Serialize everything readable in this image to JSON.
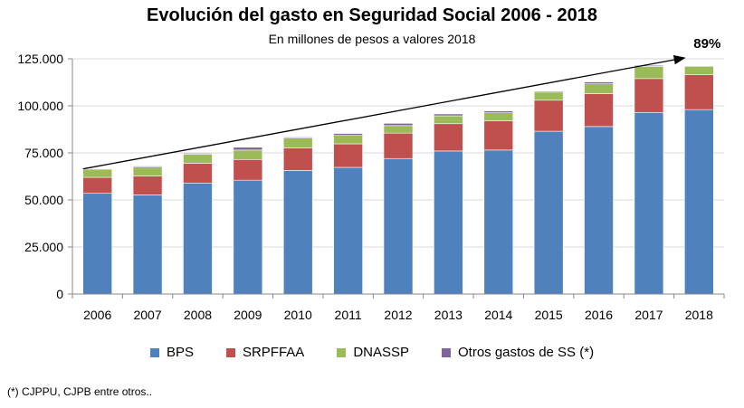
{
  "chart_data": {
    "type": "bar",
    "stacked": true,
    "title": "Evolución del gasto en Seguridad Social 2006 - 2018",
    "subtitle": "En millones de pesos a valores 2018",
    "categories": [
      "2006",
      "2007",
      "2008",
      "2009",
      "2010",
      "2011",
      "2012",
      "2013",
      "2014",
      "2015",
      "2016",
      "2017",
      "2018"
    ],
    "ylim": [
      0,
      125000
    ],
    "yticks": [
      0,
      25000,
      50000,
      75000,
      100000,
      125000
    ],
    "ytick_labels": [
      "0",
      "25.000",
      "50.000",
      "75.000",
      "100.000",
      "125.000"
    ],
    "grid": true,
    "series": [
      {
        "name": "BPS",
        "color": "#4f81bd",
        "values": [
          53500,
          52700,
          59000,
          60500,
          65700,
          67300,
          72000,
          76000,
          76500,
          86500,
          89000,
          96500,
          98000
        ]
      },
      {
        "name": "SRPFFAA",
        "color": "#c0504d",
        "values": [
          8500,
          10000,
          10500,
          11000,
          12000,
          12500,
          13500,
          14500,
          15500,
          16500,
          17500,
          18000,
          18500
        ]
      },
      {
        "name": "DNASSP",
        "color": "#9bbb59",
        "values": [
          4000,
          4800,
          4800,
          5000,
          5200,
          4500,
          4000,
          4200,
          4300,
          4300,
          5200,
          6500,
          4500
        ]
      },
      {
        "name": "Otros gastos de SS (*)",
        "color": "#8064a2",
        "values": [
          500,
          500,
          500,
          1500,
          500,
          1000,
          1200,
          1000,
          1000,
          500,
          1000,
          500,
          0
        ]
      }
    ],
    "annotation": {
      "text": "89%",
      "from_category": "2006",
      "to_category": "2018"
    }
  },
  "footnote": "(*) CJPPU, CJPB entre otros.."
}
